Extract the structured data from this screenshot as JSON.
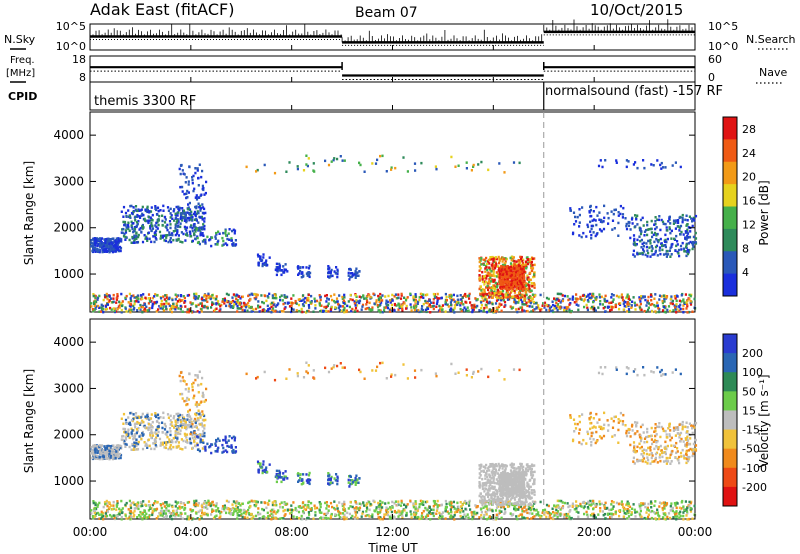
{
  "header": {
    "title": "Adak East (fitACF)",
    "beam": "Beam 07",
    "date": "10/Oct/2015"
  },
  "left_labels": {
    "nsky": "N.Sky",
    "freq": "Freq.",
    "freq_unit": "[MHz]",
    "cpid": "CPID"
  },
  "right_labels": {
    "nsearch": "N.Search",
    "nave": "Nave"
  },
  "cpid_text": {
    "first": "themis 3300 RF",
    "second": "normalsound (fast) -157 RF"
  },
  "colors": {
    "power_scale": [
      "#1a2fdc",
      "#2a58b8",
      "#2e8a5a",
      "#45b04a",
      "#e6d21e",
      "#f29a17",
      "#ef5a14",
      "#e01313"
    ],
    "velocity_scale": [
      "#2a3cd0",
      "#2a66b4",
      "#2e8a56",
      "#6ccc4a",
      "#bdbdbd",
      "#f0c23a",
      "#f08a1c",
      "#ee4a16",
      "#e01212"
    ]
  },
  "chart_data": [
    {
      "type": "line",
      "name": "noise-search",
      "x_range": [
        0,
        24
      ],
      "left_ticks": [
        "10^5",
        "10^0"
      ],
      "right_ticks": [
        "10^5",
        "10^0"
      ],
      "segments": [
        {
          "x": [
            0,
            10
          ],
          "y": 0.55
        },
        {
          "x": [
            10,
            18
          ],
          "y": 0.3
        },
        {
          "x": [
            18,
            24
          ],
          "y": 0.75
        }
      ]
    },
    {
      "type": "line",
      "name": "frequency-nave",
      "x_range": [
        0,
        24
      ],
      "left_ticks": [
        "18",
        "8"
      ],
      "right_ticks": [
        "60",
        "0"
      ],
      "segments": [
        {
          "x": [
            0,
            10
          ],
          "freq": 13.7
        },
        {
          "x": [
            10,
            18
          ],
          "freq": 10.5
        },
        {
          "x": [
            18,
            24
          ],
          "freq": 13.7
        }
      ],
      "cpid_change": 18
    },
    {
      "type": "heatmap",
      "name": "power",
      "xlabel": "Time UT",
      "ylabel": "Slant Range [km]",
      "x_range": [
        0,
        24
      ],
      "y_range": [
        180,
        4500
      ],
      "y_ticks": [
        "1000",
        "2000",
        "3000",
        "4000"
      ],
      "colorbar_label": "Power [dB]",
      "colorbar_ticks": [
        "4",
        "8",
        "12",
        "16",
        "20",
        "24",
        "28"
      ],
      "colorbar_range": [
        0,
        30
      ]
    },
    {
      "type": "heatmap",
      "name": "velocity",
      "xlabel": "Time UT",
      "ylabel": "Slant Range [km]",
      "x_range": [
        0,
        24
      ],
      "y_range": [
        180,
        4500
      ],
      "x_ticks": [
        "00:00",
        "04:00",
        "08:00",
        "12:00",
        "16:00",
        "20:00",
        "00:00"
      ],
      "y_ticks": [
        "1000",
        "2000",
        "3000",
        "4000"
      ],
      "colorbar_label": "Velocity [m s⁻¹]",
      "colorbar_ticks": [
        "200",
        "100",
        "50",
        "15",
        "-15",
        "-50",
        "-100",
        "-200"
      ]
    }
  ]
}
